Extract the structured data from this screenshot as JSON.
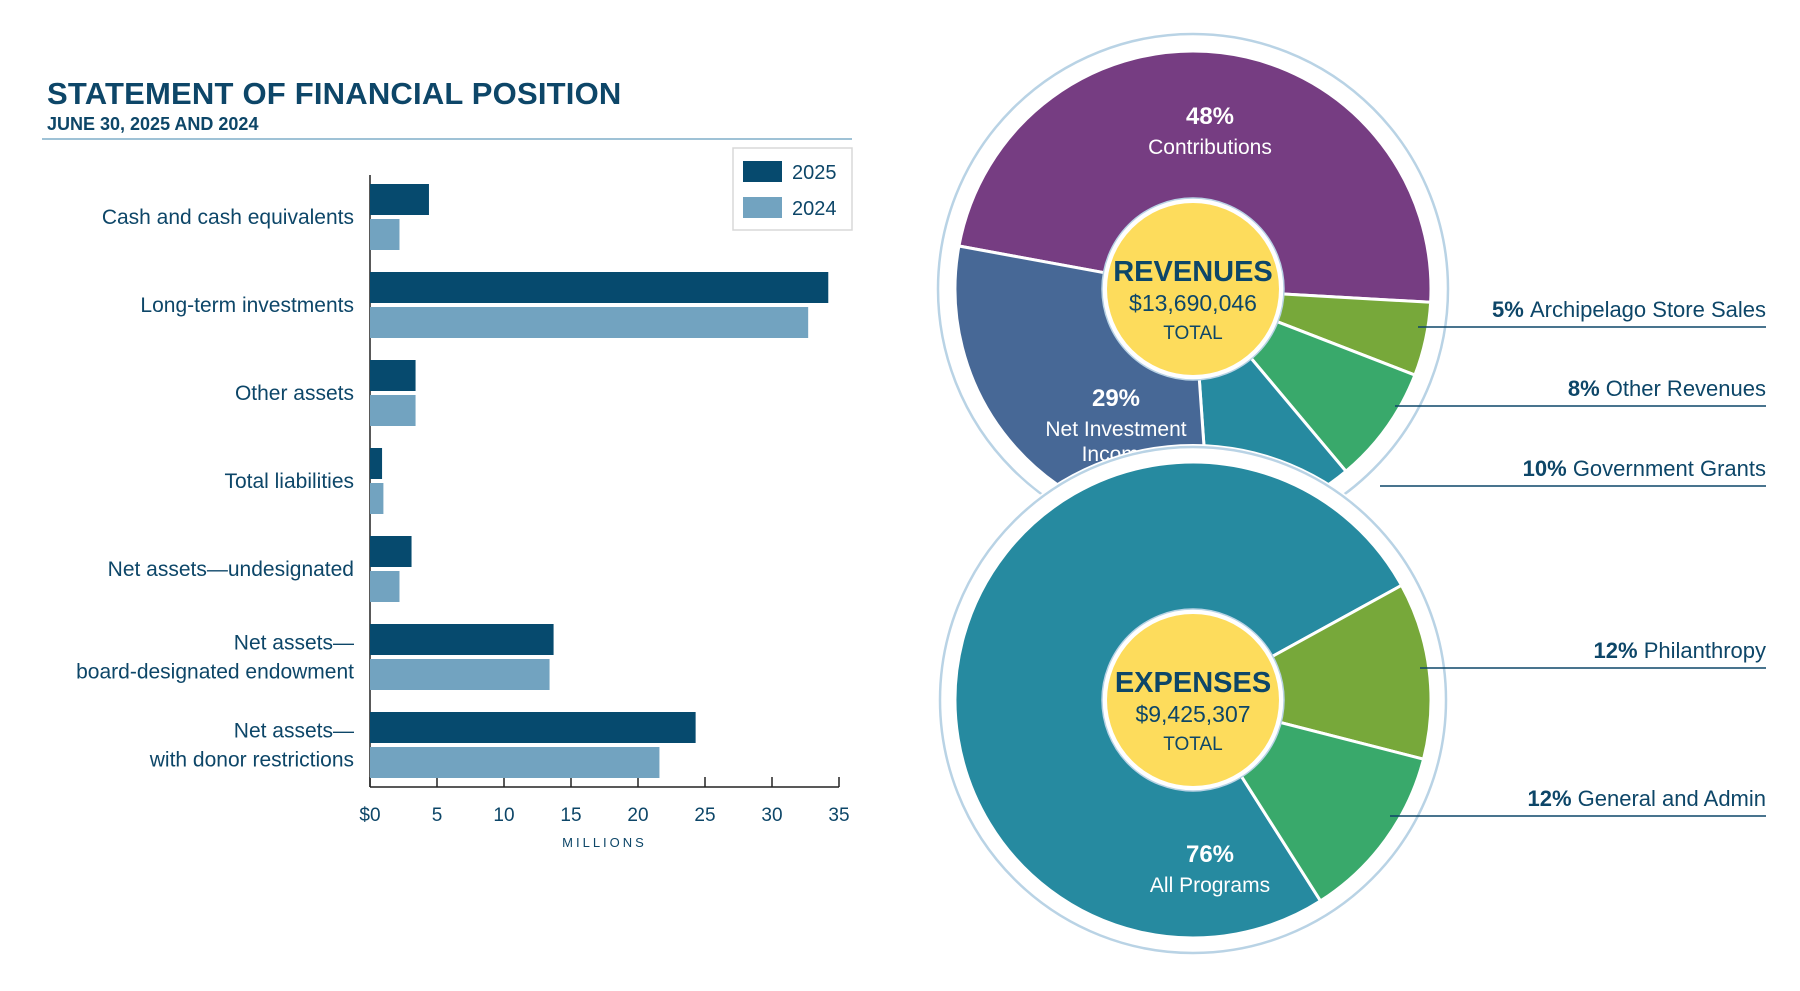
{
  "header": {
    "title": "STATEMENT OF FINANCIAL POSITION",
    "subtitle": "JUNE 30, 2025 AND 2024"
  },
  "colors": {
    "navy": "#0d4668",
    "bar_2025": "#064a6e",
    "bar_2024": "#72a3c0",
    "purple": "#763d82",
    "slate_blue": "#476896",
    "teal": "#268aa0",
    "green": "#39a96b",
    "olive_green": "#77a83a",
    "yellow": "#fddc5c",
    "ring": "#b9d3e5"
  },
  "chart_data": [
    {
      "type": "bar",
      "orientation": "horizontal",
      "title": "STATEMENT OF FINANCIAL POSITION",
      "subtitle": "JUNE 30, 2025 AND 2024",
      "categories": [
        "Cash and cash equivalents",
        "Long-term investments",
        "Other assets",
        "Total liabilities",
        "Net assets—undesignated",
        "Net assets—\nboard-designated endowment",
        "Net assets—\nwith donor restrictions"
      ],
      "series": [
        {
          "name": "2025",
          "values": [
            4.4,
            34.2,
            3.4,
            0.9,
            3.1,
            13.7,
            24.3
          ]
        },
        {
          "name": "2024",
          "values": [
            2.2,
            32.7,
            3.4,
            1.0,
            2.2,
            13.4,
            21.6
          ]
        }
      ],
      "xlabel": "MILLIONS",
      "ylabel": "",
      "xlim": [
        0,
        35
      ],
      "xticks": [
        0,
        5,
        10,
        15,
        20,
        25,
        30,
        35
      ],
      "xtick_labels": [
        "$0",
        "5",
        "10",
        "15",
        "20",
        "25",
        "30",
        "35"
      ],
      "legend": {
        "position": "top-right",
        "entries": [
          "2025",
          "2024"
        ]
      },
      "grid": false
    },
    {
      "type": "pie",
      "title": "REVENUES",
      "center_label": {
        "title": "REVENUES",
        "amount": "$13,690,046",
        "suffix": "TOTAL"
      },
      "slices": [
        {
          "label": "Contributions",
          "percent": 48,
          "percent_label": "48%",
          "color": "#763d82",
          "label_position": "inside"
        },
        {
          "label": "Archipelago Store Sales",
          "percent": 5,
          "percent_label": "5%",
          "color": "#77a83a",
          "label_position": "callout"
        },
        {
          "label": "Other Revenues",
          "percent": 8,
          "percent_label": "8%",
          "color": "#39a96b",
          "label_position": "callout"
        },
        {
          "label": "Government Grants",
          "percent": 10,
          "percent_label": "10%",
          "color": "#268aa0",
          "label_position": "callout"
        },
        {
          "label": "Net Investment Income",
          "percent": 29,
          "percent_label": "29%",
          "color": "#476896",
          "label_position": "inside"
        }
      ]
    },
    {
      "type": "pie",
      "title": "EXPENSES",
      "center_label": {
        "title": "EXPENSES",
        "amount": "$9,425,307",
        "suffix": "TOTAL"
      },
      "slices": [
        {
          "label": "All Programs",
          "percent": 76,
          "percent_label": "76%",
          "color": "#268aa0",
          "label_position": "inside"
        },
        {
          "label": "Philanthropy",
          "percent": 12,
          "percent_label": "12%",
          "color": "#77a83a",
          "label_position": "callout"
        },
        {
          "label": "General and Admin",
          "percent": 12,
          "percent_label": "12%",
          "color": "#39a96b",
          "label_position": "callout"
        }
      ]
    }
  ]
}
